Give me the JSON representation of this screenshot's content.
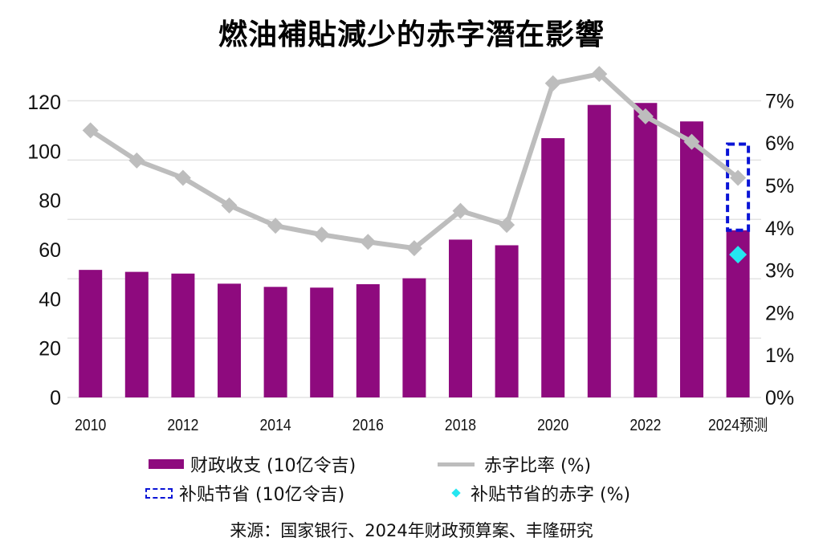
{
  "chart_data": {
    "type": "bar+line",
    "title": "燃油補貼減少的赤字潛在影響",
    "categories": [
      "2010",
      "2011",
      "2012",
      "2013",
      "2014",
      "2015",
      "2016",
      "2017",
      "2018",
      "2019",
      "2020",
      "2021",
      "2022",
      "2023",
      "2024预测"
    ],
    "x_tick_labels": [
      "2010",
      "2012",
      "2014",
      "2016",
      "2018",
      "2020",
      "2022",
      "2024预测"
    ],
    "left_axis": {
      "ylim": [
        0,
        120
      ],
      "ticks": [
        "0",
        "20",
        "40",
        "60",
        "80",
        "100",
        "120"
      ]
    },
    "right_axis": {
      "ylim": [
        0,
        7
      ],
      "ticks": [
        "0%",
        "1%",
        "2%",
        "3%",
        "4%",
        "5%",
        "6%",
        "7%"
      ]
    },
    "grid": true,
    "legend_placement": "bottom",
    "series": [
      {
        "name": "财政收支 (10亿令吉)",
        "type": "bar",
        "axis": "left",
        "color": "#8e0a7e",
        "values": [
          51.8,
          51.0,
          50.3,
          46.2,
          44.9,
          44.6,
          46.0,
          48.4,
          64.1,
          61.8,
          105.3,
          118.8,
          119.6,
          112.1,
          67.9
        ]
      },
      {
        "name": "赤字比率 (%)",
        "type": "line",
        "axis": "right",
        "color": "#bdbdbd",
        "values": [
          6.3,
          5.59,
          5.18,
          4.53,
          4.05,
          3.84,
          3.67,
          3.52,
          4.4,
          4.07,
          7.41,
          7.63,
          6.63,
          6.03,
          5.18
        ]
      },
      {
        "name": "补贴节省 (10亿令吉)",
        "type": "stacked-dashed-bar",
        "axis": "left",
        "color": "#0a14d6",
        "category": "2024预测",
        "value": 35.0
      },
      {
        "name": "补贴节省的赤字 (%)",
        "type": "point",
        "axis": "right",
        "color": "#25e6f0",
        "category": "2024预测",
        "value": 3.37
      }
    ],
    "source": "来源：国家银行、2024年财政预算案、丰隆研究"
  }
}
